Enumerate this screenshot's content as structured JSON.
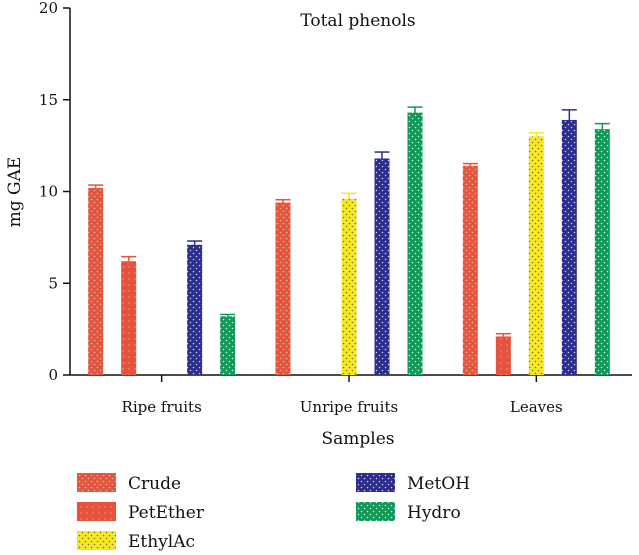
{
  "chart_data": {
    "type": "bar",
    "title": "Total phenols",
    "xlabel": "Samples",
    "ylabel": "mg GAE",
    "ylim": [
      0,
      20
    ],
    "yticks": [
      0,
      5,
      10,
      15,
      20
    ],
    "categories": [
      "Ripe fruits",
      "Unripe fruits",
      "Leaves"
    ],
    "series": [
      {
        "name": "Crude",
        "color": "#e5533d",
        "pattern": "dots",
        "values": [
          10.2,
          9.4,
          11.4
        ],
        "errors": [
          0.15,
          0.15,
          0.12
        ]
      },
      {
        "name": "PetEther",
        "color": "#e5533d",
        "pattern": "dots",
        "values": [
          6.2,
          null,
          2.1
        ],
        "errors": [
          0.25,
          null,
          0.15
        ]
      },
      {
        "name": "EthylAc",
        "color": "#f7e826",
        "pattern": "dots",
        "values": [
          null,
          9.6,
          13.0
        ],
        "errors": [
          null,
          0.3,
          0.2
        ]
      },
      {
        "name": "MetOH",
        "color": "#2b2d8f",
        "pattern": "dots",
        "values": [
          7.1,
          11.8,
          13.9
        ],
        "errors": [
          0.2,
          0.35,
          0.55
        ]
      },
      {
        "name": "Hydro",
        "color": "#0e9a57",
        "pattern": "dots",
        "values": [
          3.2,
          14.3,
          13.4
        ],
        "errors": [
          0.1,
          0.3,
          0.3
        ]
      }
    ],
    "legend_position": "bottom"
  }
}
